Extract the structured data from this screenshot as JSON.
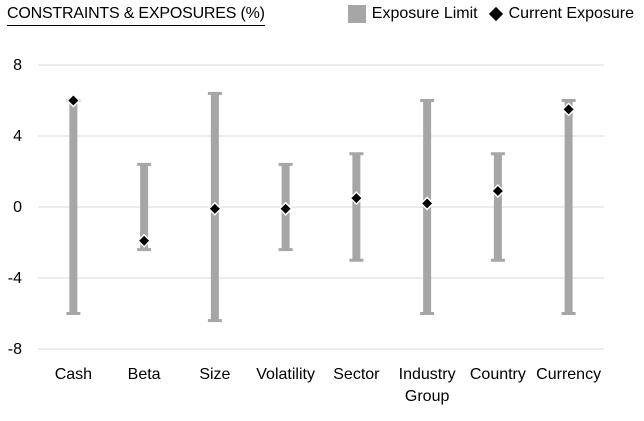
{
  "chart_data": {
    "type": "range-with-markers",
    "title": "CONSTRAINTS & EXPOSURES (%)",
    "categories": [
      [
        "Cash"
      ],
      [
        "Beta"
      ],
      [
        "Size"
      ],
      [
        "Volatility"
      ],
      [
        "Sector"
      ],
      [
        "Industry",
        "Group"
      ],
      [
        "Country"
      ],
      [
        "Currency"
      ]
    ],
    "ylim": [
      -8,
      8
    ],
    "yticks": [
      8,
      4,
      0,
      -4,
      -8
    ],
    "grid": true,
    "legend_placement": "top-right",
    "series": [
      {
        "name": "Exposure Limit",
        "kind": "range",
        "color": "#a6a6a6",
        "low": [
          -6,
          -2.4,
          -6.4,
          -2.4,
          -3,
          -6,
          -3,
          -6
        ],
        "high": [
          6,
          2.4,
          6.4,
          2.4,
          3,
          6,
          3,
          6
        ]
      },
      {
        "name": "Current Exposure",
        "kind": "marker",
        "color": "#000000",
        "values": [
          6.0,
          -1.9,
          -0.1,
          -0.1,
          0.5,
          0.2,
          0.9,
          5.5
        ]
      }
    ]
  }
}
